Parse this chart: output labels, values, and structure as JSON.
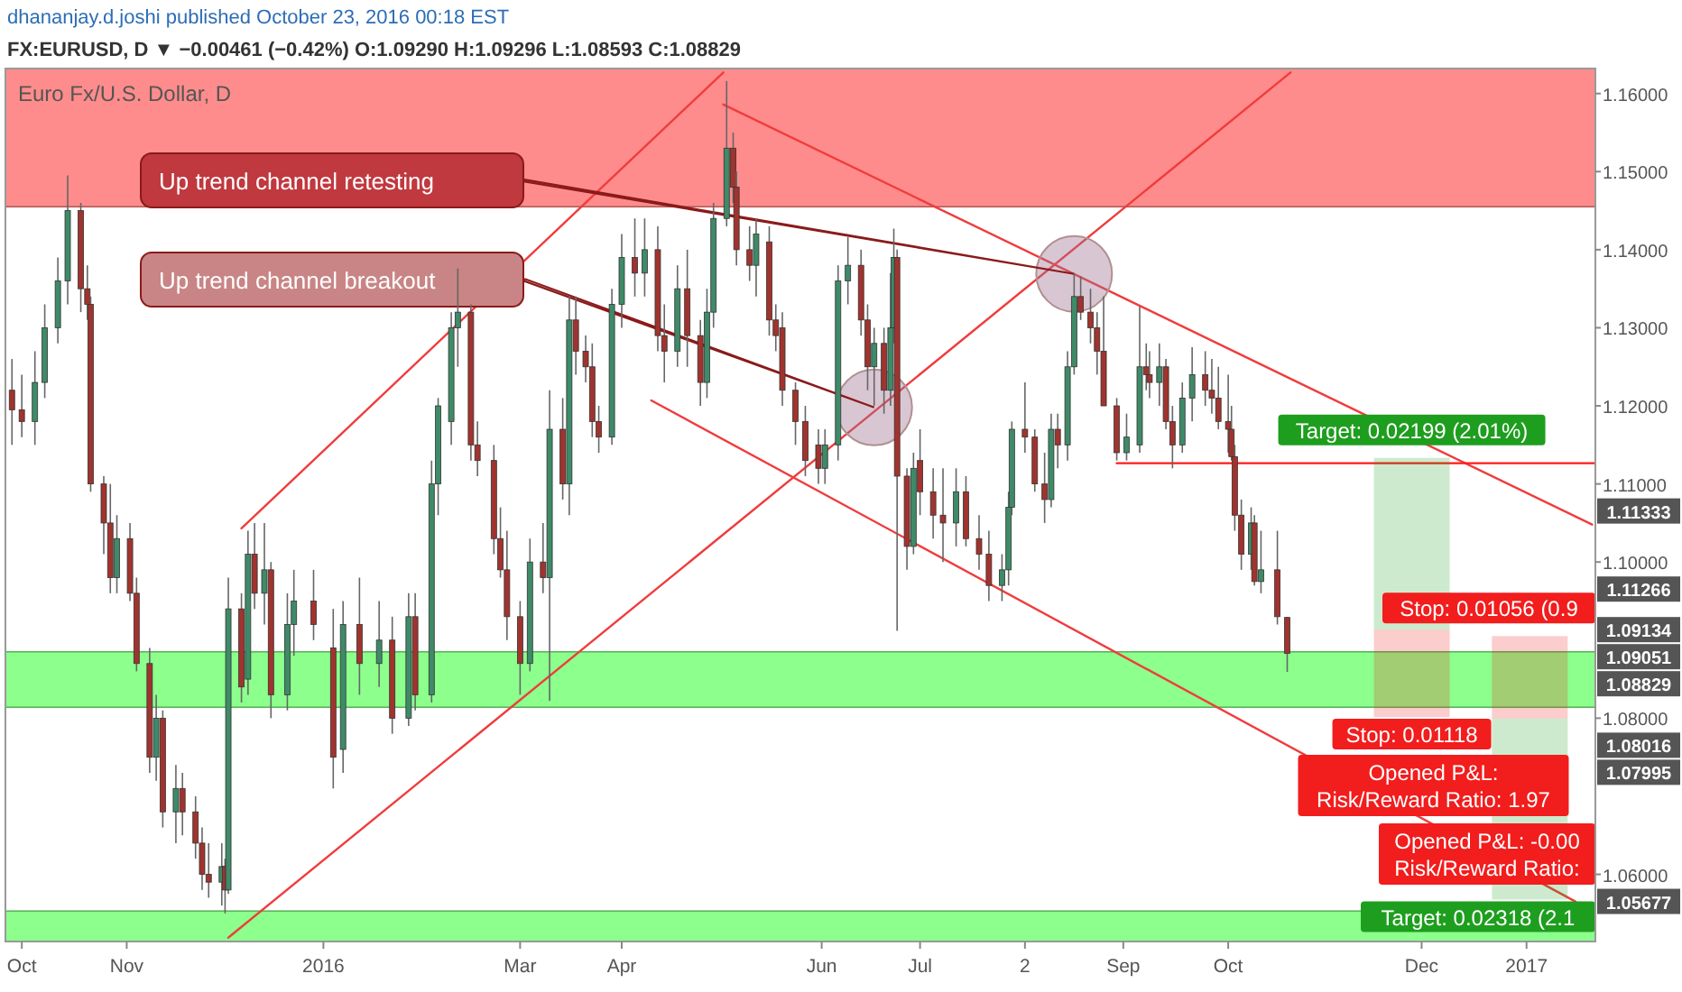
{
  "chart_data": {
    "type": "candlestick",
    "title": "Euro Fx/U.S. Dollar, D",
    "subtitle": "FX:EURUSD, D ▼ −0.00461 (−0.42%) O:1.09290 H:1.09296 L:1.08593 C:1.08829",
    "x": [
      "2015-09-28",
      "2015-10-01",
      "2015-10-05",
      "2015-10-08",
      "2015-10-12",
      "2015-10-15",
      "2015-10-19",
      "2015-10-21",
      "2015-10-22",
      "2015-10-26",
      "2015-10-28",
      "2015-10-30",
      "2015-11-03",
      "2015-11-05",
      "2015-11-09",
      "2015-11-11",
      "2015-11-13",
      "2015-11-17",
      "2015-11-19",
      "2015-11-23",
      "2015-11-25",
      "2015-11-27",
      "2015-12-01",
      "2015-12-02",
      "2015-12-03",
      "2015-12-07",
      "2015-12-09",
      "2015-12-11",
      "2015-12-14",
      "2015-12-16",
      "2015-12-21",
      "2015-12-23",
      "2015-12-29",
      "2016-01-04",
      "2016-01-07",
      "2016-01-12",
      "2016-01-18",
      "2016-01-22",
      "2016-01-27",
      "2016-01-29",
      "2016-02-03",
      "2016-02-05",
      "2016-02-09",
      "2016-02-11",
      "2016-02-15",
      "2016-02-17",
      "2016-02-22",
      "2016-02-24",
      "2016-02-26",
      "2016-03-01",
      "2016-03-04",
      "2016-03-08",
      "2016-03-10",
      "2016-03-14",
      "2016-03-16",
      "2016-03-18",
      "2016-03-21",
      "2016-03-23",
      "2016-03-25",
      "2016-03-29",
      "2016-04-01",
      "2016-04-05",
      "2016-04-08",
      "2016-04-12",
      "2016-04-14",
      "2016-04-18",
      "2016-04-21",
      "2016-04-25",
      "2016-04-27",
      "2016-04-29",
      "2016-05-03",
      "2016-05-05",
      "2016-05-06",
      "2016-05-10",
      "2016-05-12",
      "2016-05-16",
      "2016-05-18",
      "2016-05-20",
      "2016-05-24",
      "2016-05-27",
      "2016-05-31",
      "2016-06-02",
      "2016-06-06",
      "2016-06-09",
      "2016-06-13",
      "2016-06-15",
      "2016-06-17",
      "2016-06-20",
      "2016-06-22",
      "2016-06-23",
      "2016-06-24",
      "2016-06-27",
      "2016-06-29",
      "2016-07-01",
      "2016-07-05",
      "2016-07-08",
      "2016-07-12",
      "2016-07-15",
      "2016-07-19",
      "2016-07-22",
      "2016-07-26",
      "2016-07-28",
      "2016-07-29",
      "2016-08-02",
      "2016-08-05",
      "2016-08-08",
      "2016-08-10",
      "2016-08-12",
      "2016-08-15",
      "2016-08-17",
      "2016-08-19",
      "2016-08-22",
      "2016-08-24",
      "2016-08-26",
      "2016-08-30",
      "2016-09-02",
      "2016-09-06",
      "2016-09-08",
      "2016-09-09",
      "2016-09-12",
      "2016-09-14",
      "2016-09-16",
      "2016-09-19",
      "2016-09-22",
      "2016-09-26",
      "2016-09-28",
      "2016-09-30",
      "2016-10-03",
      "2016-10-04",
      "2016-10-05",
      "2016-10-07",
      "2016-10-10",
      "2016-10-11",
      "2016-10-13",
      "2016-10-18",
      "2016-10-21"
    ],
    "ohlc": [
      [
        1.122,
        1.126,
        1.115,
        1.1195
      ],
      [
        1.1195,
        1.124,
        1.116,
        1.118
      ],
      [
        1.118,
        1.127,
        1.115,
        1.123
      ],
      [
        1.123,
        1.133,
        1.121,
        1.13
      ],
      [
        1.13,
        1.139,
        1.128,
        1.136
      ],
      [
        1.136,
        1.1495,
        1.133,
        1.145
      ],
      [
        1.145,
        1.146,
        1.132,
        1.135
      ],
      [
        1.135,
        1.138,
        1.131,
        1.133
      ],
      [
        1.133,
        1.134,
        1.109,
        1.11
      ],
      [
        1.11,
        1.111,
        1.101,
        1.105
      ],
      [
        1.105,
        1.11,
        1.096,
        1.098
      ],
      [
        1.098,
        1.106,
        1.096,
        1.103
      ],
      [
        1.103,
        1.105,
        1.095,
        1.096
      ],
      [
        1.096,
        1.098,
        1.086,
        1.087
      ],
      [
        1.087,
        1.089,
        1.073,
        1.075
      ],
      [
        1.075,
        1.083,
        1.072,
        1.08
      ],
      [
        1.08,
        1.081,
        1.066,
        1.068
      ],
      [
        1.068,
        1.074,
        1.064,
        1.071
      ],
      [
        1.071,
        1.073,
        1.065,
        1.068
      ],
      [
        1.068,
        1.07,
        1.062,
        1.064
      ],
      [
        1.064,
        1.066,
        1.058,
        1.06
      ],
      [
        1.06,
        1.064,
        1.057,
        1.059
      ],
      [
        1.059,
        1.064,
        1.056,
        1.061
      ],
      [
        1.061,
        1.062,
        1.055,
        1.058
      ],
      [
        1.058,
        1.098,
        1.0575,
        1.094
      ],
      [
        1.094,
        1.096,
        1.082,
        1.084
      ],
      [
        1.085,
        1.104,
        1.083,
        1.101
      ],
      [
        1.101,
        1.105,
        1.094,
        1.096
      ],
      [
        1.096,
        1.105,
        1.092,
        1.099
      ],
      [
        1.099,
        1.1,
        1.08,
        1.083
      ],
      [
        1.083,
        1.096,
        1.081,
        1.092
      ],
      [
        1.092,
        1.099,
        1.088,
        1.095
      ],
      [
        1.095,
        1.099,
        1.09,
        1.092
      ],
      [
        1.089,
        1.094,
        1.071,
        1.075
      ],
      [
        1.076,
        1.095,
        1.073,
        1.092
      ],
      [
        1.092,
        1.098,
        1.083,
        1.087
      ],
      [
        1.087,
        1.095,
        1.084,
        1.09
      ],
      [
        1.09,
        1.093,
        1.078,
        1.08
      ],
      [
        1.08,
        1.096,
        1.079,
        1.093
      ],
      [
        1.093,
        1.096,
        1.081,
        1.083
      ],
      [
        1.083,
        1.113,
        1.082,
        1.11
      ],
      [
        1.11,
        1.121,
        1.106,
        1.12
      ],
      [
        1.118,
        1.132,
        1.115,
        1.13
      ],
      [
        1.13,
        1.1376,
        1.125,
        1.132
      ],
      [
        1.132,
        1.133,
        1.113,
        1.115
      ],
      [
        1.115,
        1.118,
        1.111,
        1.113
      ],
      [
        1.113,
        1.115,
        1.101,
        1.103
      ],
      [
        1.103,
        1.107,
        1.098,
        1.099
      ],
      [
        1.099,
        1.104,
        1.09,
        1.093
      ],
      [
        1.093,
        1.095,
        1.083,
        1.087
      ],
      [
        1.087,
        1.103,
        1.086,
        1.1
      ],
      [
        1.1,
        1.105,
        1.096,
        1.098
      ],
      [
        1.098,
        1.122,
        1.0822,
        1.117
      ],
      [
        1.117,
        1.121,
        1.108,
        1.11
      ],
      [
        1.11,
        1.134,
        1.106,
        1.131
      ],
      [
        1.131,
        1.134,
        1.124,
        1.127
      ],
      [
        1.127,
        1.129,
        1.123,
        1.125
      ],
      [
        1.125,
        1.128,
        1.116,
        1.118
      ],
      [
        1.118,
        1.12,
        1.114,
        1.116
      ],
      [
        1.116,
        1.135,
        1.115,
        1.133
      ],
      [
        1.133,
        1.142,
        1.13,
        1.139
      ],
      [
        1.139,
        1.144,
        1.134,
        1.137
      ],
      [
        1.137,
        1.144,
        1.134,
        1.14
      ],
      [
        1.14,
        1.143,
        1.127,
        1.129
      ],
      [
        1.129,
        1.133,
        1.123,
        1.127
      ],
      [
        1.127,
        1.138,
        1.125,
        1.135
      ],
      [
        1.135,
        1.14,
        1.125,
        1.129
      ],
      [
        1.129,
        1.131,
        1.12,
        1.123
      ],
      [
        1.123,
        1.135,
        1.121,
        1.132
      ],
      [
        1.132,
        1.146,
        1.13,
        1.144
      ],
      [
        1.144,
        1.1616,
        1.143,
        1.153
      ],
      [
        1.153,
        1.155,
        1.146,
        1.148
      ],
      [
        1.148,
        1.15,
        1.138,
        1.14
      ],
      [
        1.14,
        1.143,
        1.136,
        1.138
      ],
      [
        1.138,
        1.144,
        1.134,
        1.142
      ],
      [
        1.141,
        1.143,
        1.129,
        1.131
      ],
      [
        1.131,
        1.133,
        1.127,
        1.129
      ],
      [
        1.13,
        1.132,
        1.12,
        1.122
      ],
      [
        1.122,
        1.123,
        1.115,
        1.118
      ],
      [
        1.118,
        1.12,
        1.111,
        1.113
      ],
      [
        1.115,
        1.117,
        1.11,
        1.112
      ],
      [
        1.112,
        1.117,
        1.11,
        1.115
      ],
      [
        1.115,
        1.138,
        1.113,
        1.136
      ],
      [
        1.136,
        1.1416,
        1.133,
        1.138
      ],
      [
        1.138,
        1.14,
        1.129,
        1.131
      ],
      [
        1.131,
        1.133,
        1.122,
        1.125
      ],
      [
        1.125,
        1.13,
        1.12,
        1.128
      ],
      [
        1.128,
        1.13,
        1.119,
        1.122
      ],
      [
        1.122,
        1.137,
        1.12,
        1.13
      ],
      [
        1.13,
        1.1427,
        1.128,
        1.139
      ],
      [
        1.139,
        1.14,
        1.0912,
        1.111
      ],
      [
        1.111,
        1.112,
        1.099,
        1.102
      ],
      [
        1.102,
        1.114,
        1.101,
        1.112
      ],
      [
        1.113,
        1.117,
        1.106,
        1.109
      ],
      [
        1.109,
        1.112,
        1.103,
        1.106
      ],
      [
        1.106,
        1.112,
        1.1,
        1.105
      ],
      [
        1.105,
        1.112,
        1.102,
        1.109
      ],
      [
        1.109,
        1.111,
        1.102,
        1.103
      ],
      [
        1.103,
        1.106,
        1.099,
        1.101
      ],
      [
        1.101,
        1.104,
        1.095,
        1.097
      ],
      [
        1.097,
        1.101,
        1.095,
        1.099
      ],
      [
        1.099,
        1.109,
        1.097,
        1.107
      ],
      [
        1.107,
        1.118,
        1.106,
        1.117
      ],
      [
        1.117,
        1.123,
        1.114,
        1.116
      ],
      [
        1.116,
        1.117,
        1.109,
        1.11
      ],
      [
        1.11,
        1.114,
        1.105,
        1.108
      ],
      [
        1.108,
        1.119,
        1.107,
        1.117
      ],
      [
        1.117,
        1.119,
        1.112,
        1.115
      ],
      [
        1.115,
        1.127,
        1.113,
        1.125
      ],
      [
        1.125,
        1.137,
        1.124,
        1.134
      ],
      [
        1.134,
        1.1366,
        1.131,
        1.132
      ],
      [
        1.132,
        1.135,
        1.128,
        1.13
      ],
      [
        1.13,
        1.132,
        1.124,
        1.127
      ],
      [
        1.127,
        1.134,
        1.12,
        1.12
      ],
      [
        1.12,
        1.121,
        1.113,
        1.114
      ],
      [
        1.114,
        1.119,
        1.113,
        1.116
      ],
      [
        1.115,
        1.1327,
        1.114,
        1.125
      ],
      [
        1.125,
        1.128,
        1.122,
        1.124
      ],
      [
        1.124,
        1.127,
        1.121,
        1.123
      ],
      [
        1.123,
        1.128,
        1.12,
        1.125
      ],
      [
        1.125,
        1.126,
        1.117,
        1.118
      ],
      [
        1.118,
        1.12,
        1.112,
        1.115
      ],
      [
        1.115,
        1.123,
        1.114,
        1.121
      ],
      [
        1.121,
        1.1275,
        1.118,
        1.124
      ],
      [
        1.124,
        1.127,
        1.12,
        1.122
      ],
      [
        1.122,
        1.126,
        1.119,
        1.121
      ],
      [
        1.121,
        1.125,
        1.117,
        1.118
      ],
      [
        1.118,
        1.124,
        1.114,
        1.117
      ],
      [
        1.117,
        1.12,
        1.113,
        1.1135
      ],
      [
        1.1135,
        1.115,
        1.104,
        1.106
      ],
      [
        1.106,
        1.108,
        1.099,
        1.101
      ],
      [
        1.101,
        1.107,
        1.099,
        1.105
      ],
      [
        1.105,
        1.106,
        1.097,
        1.0975
      ],
      [
        1.0975,
        1.104,
        1.096,
        1.099
      ],
      [
        1.099,
        1.104,
        1.092,
        1.093
      ],
      [
        1.0929,
        1.09296,
        1.08593,
        1.08829
      ]
    ],
    "xlim": [
      "2015-09-26",
      "2017-01-23"
    ],
    "xticks": [
      {
        "value": "2015-10-01",
        "label": "Oct"
      },
      {
        "value": "2015-11-02",
        "label": "Nov"
      },
      {
        "value": "2016-01-01",
        "label": "2016"
      },
      {
        "value": "2016-03-01",
        "label": "Mar"
      },
      {
        "value": "2016-04-01",
        "label": "Apr"
      },
      {
        "value": "2016-06-01",
        "label": "Jun"
      },
      {
        "value": "2016-07-01",
        "label": "Jul"
      },
      {
        "value": "2016-08-02",
        "label": "2"
      },
      {
        "value": "2016-09-01",
        "label": "Sep"
      },
      {
        "value": "2016-10-03",
        "label": "Oct"
      },
      {
        "value": "2016-12-01",
        "label": "Dec"
      },
      {
        "value": "2017-01-02",
        "label": "2017"
      }
    ],
    "ylim": [
      1.0514,
      1.1632
    ],
    "yticks": [
      {
        "value": 1.06,
        "label": "1.06000"
      },
      {
        "value": 1.08,
        "label": "1.08000"
      },
      {
        "value": 1.1,
        "label": "1.10000"
      },
      {
        "value": 1.11,
        "label": "1.11000"
      },
      {
        "value": 1.12,
        "label": "1.12000"
      },
      {
        "value": 1.13,
        "label": "1.13000"
      },
      {
        "value": 1.14,
        "label": "1.14000"
      },
      {
        "value": 1.15,
        "label": "1.15000"
      },
      {
        "value": 1.16,
        "label": "1.16000"
      }
    ],
    "bands": [
      {
        "axis": "y",
        "from": 1.1455,
        "to": 1.1632,
        "color": "#ff8080"
      },
      {
        "axis": "y",
        "from": 1.0814,
        "to": 1.0885,
        "color": "#80ff80"
      },
      {
        "axis": "y",
        "from": 1.0514,
        "to": 1.0553,
        "color": "#80ff80"
      }
    ],
    "series": [
      {
        "type": "line",
        "x": [
          "2015-12-03",
          "2016-10-22"
        ],
        "values": [
          1.0519,
          1.1627
        ],
        "color": "#f03c3c"
      },
      {
        "type": "line",
        "x": [
          "2015-12-07",
          "2016-05-02"
        ],
        "values": [
          1.1043,
          1.1627
        ],
        "color": "#f03c3c"
      },
      {
        "type": "line",
        "x": [
          "2016-05-02",
          "2017-01-22"
        ],
        "values": [
          1.1586,
          1.1048
        ],
        "color": "#f03c3c"
      },
      {
        "type": "line",
        "x": [
          "2016-04-10",
          "2017-01-17"
        ],
        "values": [
          1.1207,
          1.0565
        ],
        "color": "#f03c3c"
      },
      {
        "type": "line",
        "x": [
          "2016-08-30",
          "2017-01-23"
        ],
        "values": [
          1.11266,
          1.11266
        ],
        "color": "#ff1a1a"
      },
      {
        "type": "bar",
        "x": [
          "2016-11-28",
          "2017-01-03"
        ],
        "base": [
          1.09134,
          1.05677
        ],
        "values": [
          0.02199,
          0.02318
        ],
        "color": "#1e9e1e",
        "value_labels": [
          "Target: 0.02199 (2.01%)",
          "Target: 0.02318 (2.1"
        ]
      },
      {
        "type": "bar",
        "x": [
          "2016-11-28",
          "2017-01-03"
        ],
        "base": [
          1.08016,
          1.07995
        ],
        "values": [
          0.01118,
          0.01056
        ],
        "color": "#f21d1d",
        "value_labels": [
          "Stop: 0.01118",
          "Stop: 0.01056 (0.9"
        ]
      }
    ],
    "annotations": [
      "dhananjay.d.joshi published October 23, 2016 00:18 EST",
      {
        "text": "Up trend channel retesting",
        "x": "2016-08-17",
        "y": 1.1369
      },
      {
        "text": "Up trend channel breakout",
        "x": "2016-06-17",
        "y": 1.1198
      },
      "Opened P&L:\nRisk/Reward Ratio: 1.97",
      "Opened P&L: -0.00\nRisk/Reward Ratio:",
      "1.11333",
      "1.11266",
      "1.09134",
      "1.09051",
      "1.08829",
      "1.08016",
      "1.07995",
      "1.05677"
    ]
  }
}
